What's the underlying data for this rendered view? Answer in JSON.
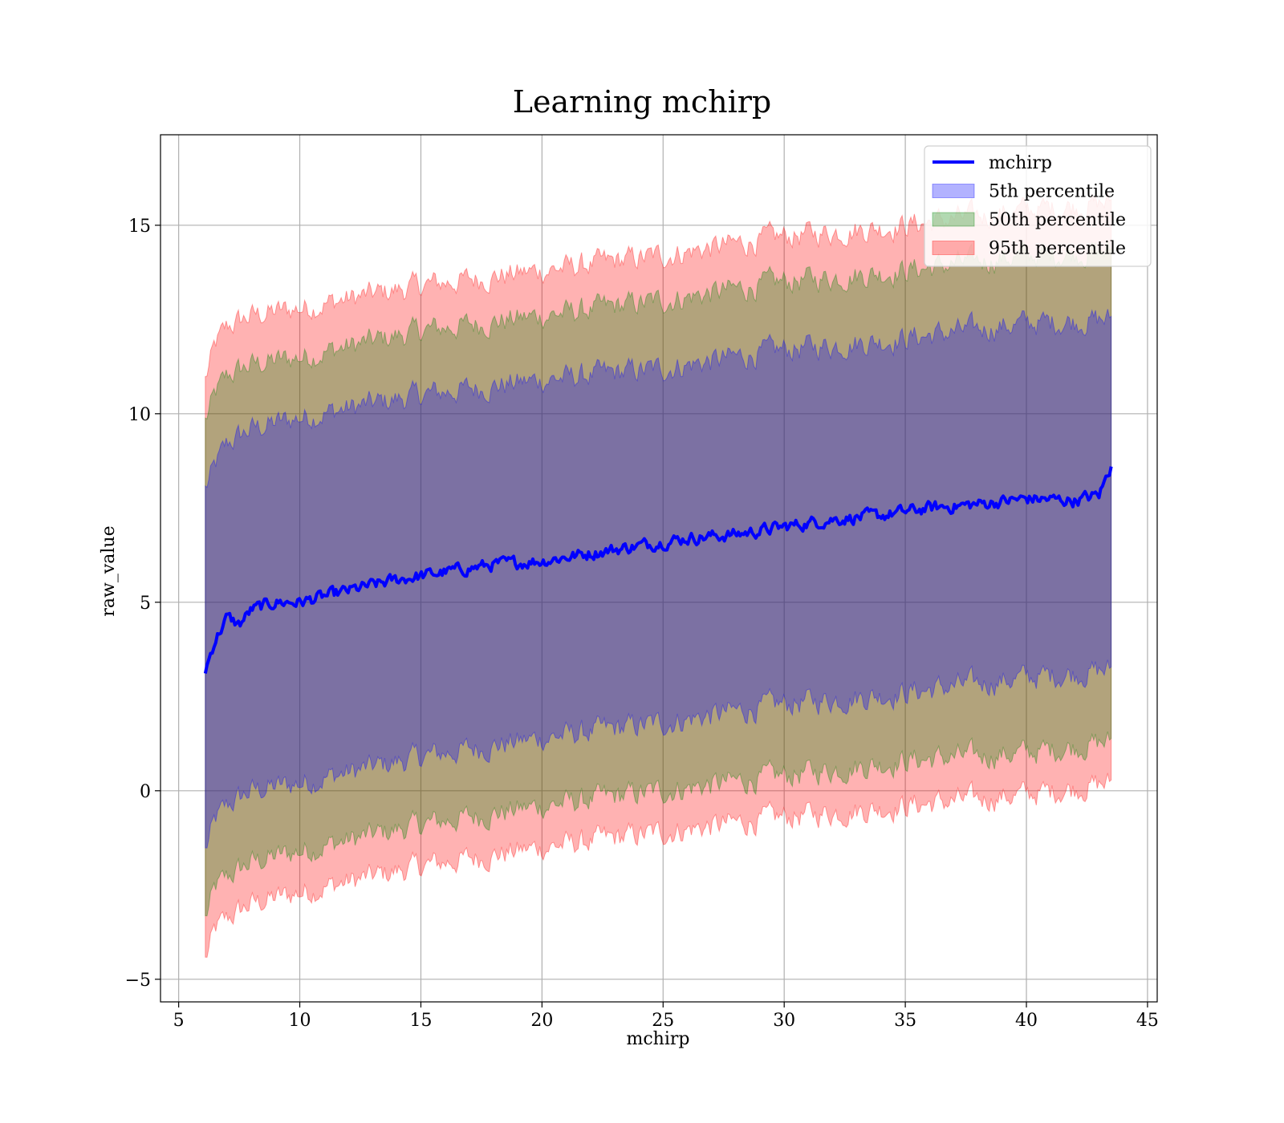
{
  "chart_data": {
    "type": "line",
    "title": "Learning mchirp",
    "xlabel": "mchirp",
    "ylabel": "raw_value",
    "xlim": [
      4.25,
      45.4
    ],
    "ylim": [
      -5.6,
      17.4
    ],
    "xticks": [
      5,
      10,
      15,
      20,
      25,
      30,
      35,
      40,
      45
    ],
    "yticks": [
      -5,
      0,
      5,
      10,
      15
    ],
    "xtick_labels": [
      "5",
      "10",
      "15",
      "20",
      "25",
      "30",
      "35",
      "40",
      "45"
    ],
    "ytick_labels": [
      "−5",
      "0",
      "5",
      "10",
      "15"
    ],
    "grid": true,
    "legend_position": "top-right",
    "x_range": [
      6.1,
      43.5
    ],
    "series": [
      {
        "name": "mchirp",
        "kind": "line",
        "color": "#0000ff",
        "x": [
          6.1,
          6.5,
          7.0,
          7.5,
          8.0,
          9.0,
          10.0,
          12.0,
          14.0,
          16.0,
          18.0,
          20.0,
          22.0,
          24.0,
          26.0,
          28.0,
          30.0,
          32.0,
          34.0,
          36.0,
          38.0,
          40.0,
          42.0,
          43.0,
          43.5
        ],
        "y": [
          3.2,
          4.0,
          4.6,
          4.4,
          4.8,
          5.0,
          5.0,
          5.3,
          5.6,
          5.8,
          6.0,
          6.1,
          6.3,
          6.5,
          6.7,
          6.8,
          7.0,
          7.2,
          7.3,
          7.5,
          7.6,
          7.75,
          7.7,
          7.85,
          8.6
        ]
      },
      {
        "name": "5th percentile",
        "kind": "band",
        "color": "#0000ff",
        "x": [
          6.1,
          6.5,
          7.0,
          8.0,
          10.0,
          15.0,
          20.0,
          25.0,
          30.0,
          35.0,
          40.0,
          43.5
        ],
        "upper": [
          8.0,
          8.6,
          9.2,
          9.6,
          9.9,
          10.5,
          10.9,
          11.2,
          11.7,
          12.0,
          12.4,
          12.5
        ],
        "lower": [
          -1.6,
          -0.8,
          -0.4,
          0.0,
          0.2,
          0.9,
          1.4,
          1.8,
          2.3,
          2.6,
          3.0,
          3.2
        ]
      },
      {
        "name": "50th percentile",
        "kind": "band",
        "color": "#008000",
        "x": [
          6.1,
          6.5,
          7.0,
          8.0,
          10.0,
          15.0,
          20.0,
          25.0,
          30.0,
          35.0,
          40.0,
          43.5
        ],
        "upper": [
          9.8,
          10.5,
          11.0,
          11.3,
          11.5,
          12.2,
          12.6,
          13.0,
          13.5,
          13.8,
          14.2,
          14.3
        ],
        "lower": [
          -3.4,
          -2.6,
          -2.3,
          -1.9,
          -1.6,
          -0.9,
          -0.4,
          0.0,
          0.4,
          0.8,
          1.0,
          1.3
        ]
      },
      {
        "name": "95th percentile",
        "kind": "band",
        "color": "#ff0000",
        "x": [
          6.1,
          6.5,
          7.0,
          8.0,
          10.0,
          15.0,
          20.0,
          25.0,
          30.0,
          35.0,
          40.0,
          43.5
        ],
        "upper": [
          10.9,
          11.8,
          12.3,
          12.6,
          12.8,
          13.4,
          13.8,
          14.2,
          14.7,
          15.0,
          15.4,
          15.6
        ],
        "lower": [
          -4.5,
          -3.7,
          -3.4,
          -3.0,
          -2.7,
          -2.0,
          -1.5,
          -1.1,
          -0.7,
          -0.4,
          -0.1,
          0.2
        ]
      }
    ]
  }
}
